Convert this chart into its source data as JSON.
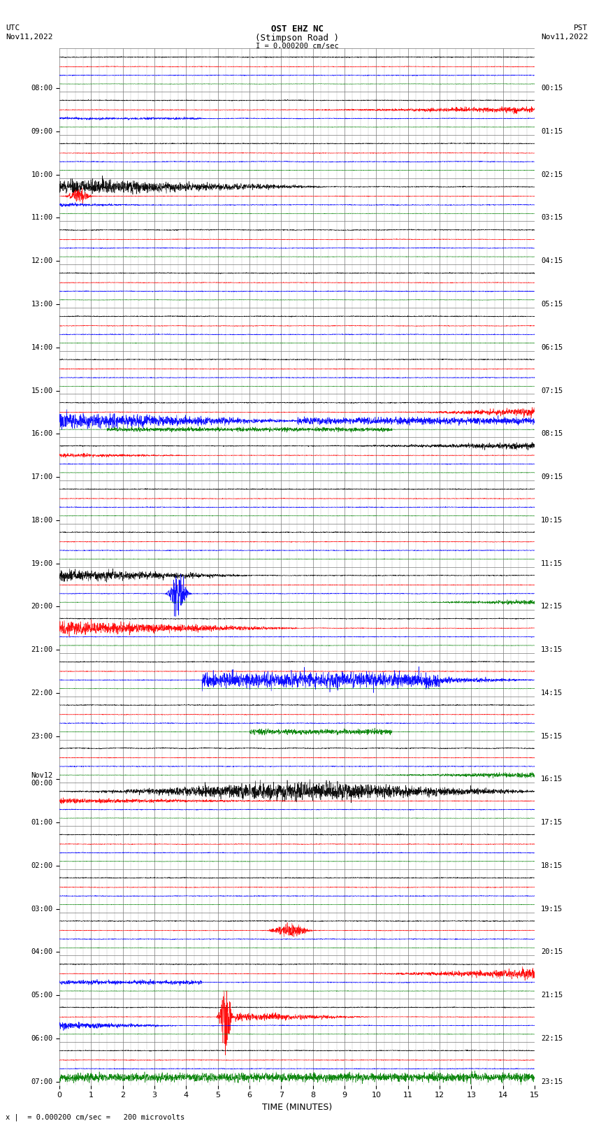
{
  "title_line1": "OST EHZ NC",
  "title_line2": "(Stimpson Road )",
  "title_scale": "I = 0.000200 cm/sec",
  "left_header_line1": "UTC",
  "left_header_line2": "Nov11,2022",
  "right_header_line1": "PST",
  "right_header_line2": "Nov11,2022",
  "xlabel": "TIME (MINUTES)",
  "footer": "x |  = 0.000200 cm/sec =   200 microvolts",
  "utc_labels": [
    "08:00",
    "09:00",
    "10:00",
    "11:00",
    "12:00",
    "13:00",
    "14:00",
    "15:00",
    "16:00",
    "17:00",
    "18:00",
    "19:00",
    "20:00",
    "21:00",
    "22:00",
    "23:00",
    "Nov12\n00:00",
    "01:00",
    "02:00",
    "03:00",
    "04:00",
    "05:00",
    "06:00",
    "07:00"
  ],
  "pst_labels": [
    "00:15",
    "01:15",
    "02:15",
    "03:15",
    "04:15",
    "05:15",
    "06:15",
    "07:15",
    "08:15",
    "09:15",
    "10:15",
    "11:15",
    "12:15",
    "13:15",
    "14:15",
    "15:15",
    "16:15",
    "17:15",
    "18:15",
    "19:15",
    "20:15",
    "21:15",
    "22:15",
    "23:15"
  ],
  "n_rows": 24,
  "n_minutes": 15,
  "colors": [
    "black",
    "red",
    "blue",
    "green"
  ],
  "background": "white",
  "grid_color_major": "#777777",
  "grid_color_minor": "#bbbbbb",
  "figsize": [
    8.5,
    16.13
  ]
}
